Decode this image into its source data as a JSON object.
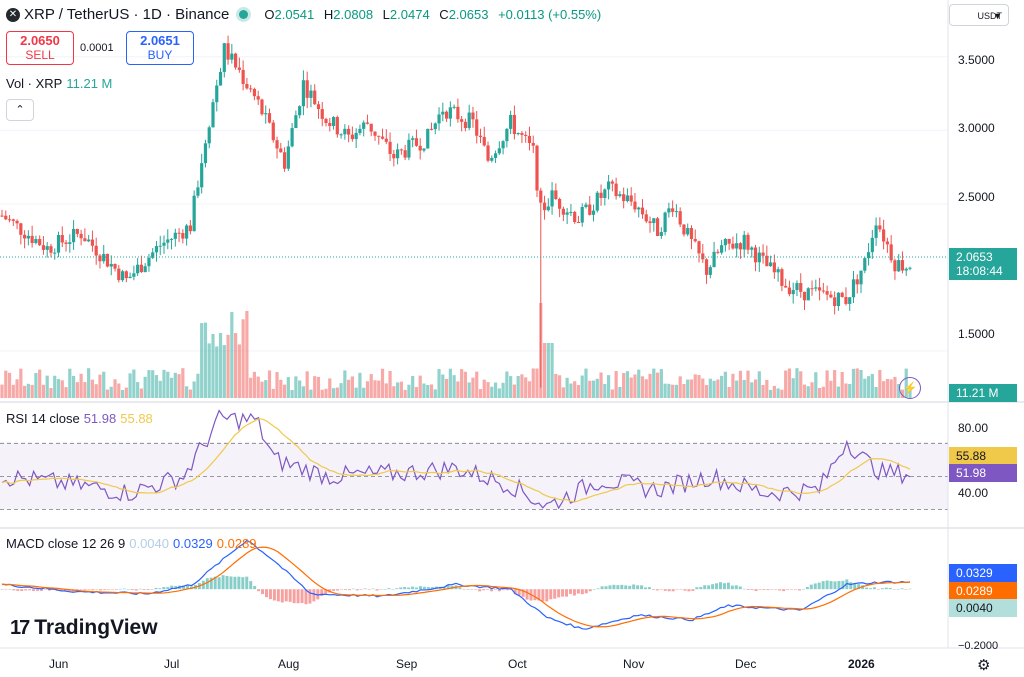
{
  "header": {
    "title": "XRP / TetherUS · 1D · Binance",
    "o_label": "O",
    "o_value": "2.0541",
    "h_label": "H",
    "h_value": "2.0808",
    "l_label": "L",
    "l_value": "2.0474",
    "c_label": "C",
    "c_value": "2.0653",
    "change": "+0.0113 (+0.55%)"
  },
  "trade": {
    "sell_price": "2.0650",
    "sell_label": "SELL",
    "spread": "0.0001",
    "buy_price": "2.0651",
    "buy_label": "BUY"
  },
  "volume": {
    "label": "Vol · XRP",
    "value": "11.21 M",
    "badge": "11.21 M"
  },
  "currency": {
    "label": "USDT"
  },
  "price_axis": [
    "3.5000",
    "3.0000",
    "2.5000",
    "1.5000"
  ],
  "last_price": {
    "value": "2.0653",
    "countdown": "18:08:44"
  },
  "rsi": {
    "label": "RSI 14 close",
    "rsi_value": "51.98",
    "ma_value": "55.88",
    "axis": [
      "80.00",
      "40.00"
    ],
    "badge_ma": "55.88",
    "badge_rsi": "51.98"
  },
  "macd": {
    "label": "MACD close 12 26 9",
    "hist_value": "0.0040",
    "macd_value": "0.0329",
    "signal_value": "0.0289",
    "badge_macd": "0.0329",
    "badge_signal": "0.0289",
    "badge_hist": "0.0040",
    "axis_bottom": "−0.2000"
  },
  "brand": "TradingView",
  "time_axis": [
    "Jun",
    "Jul",
    "Aug",
    "Sep",
    "Oct",
    "Nov",
    "Dec",
    "2026"
  ],
  "colors": {
    "up": "#26a69a",
    "down": "#ef5350",
    "rsi": "#7e57c2",
    "rsi_ma": "#f0c94b",
    "macd": "#2962ff",
    "signal": "#ff6d00"
  },
  "icons": {
    "logo": "xrp-logo-icon",
    "status": "market-open-dot-icon",
    "settings": "gear-icon",
    "alert": "lightning-icon",
    "collapse": "chevron-up-icon"
  },
  "chart_data": {
    "type": "candlestick",
    "title": "XRP / TetherUS · 1D · Binance",
    "ylim": [
      1.2,
      3.75
    ],
    "y_ticks": [
      3.5,
      3.0,
      2.5,
      1.5
    ],
    "x_labels": [
      "Jun",
      "Jul",
      "Aug",
      "Sep",
      "Oct",
      "Nov",
      "Dec",
      "2026"
    ],
    "price_path": [
      [
        "May 20",
        2.42
      ],
      [
        "Jun 1",
        2.2
      ],
      [
        "Jun 10",
        2.3
      ],
      [
        "Jun 22",
        1.98
      ],
      [
        "Jul 1",
        2.22
      ],
      [
        "Jul 9",
        2.35
      ],
      [
        "Jul 13",
        2.95
      ],
      [
        "Jul 18",
        3.55
      ],
      [
        "Jul 22",
        3.4
      ],
      [
        "Jul 27",
        3.18
      ],
      [
        "Aug 3",
        2.78
      ],
      [
        "Aug 8",
        3.32
      ],
      [
        "Aug 14",
        3.08
      ],
      [
        "Aug 20",
        2.95
      ],
      [
        "Aug 25",
        3.05
      ],
      [
        "Sep 1",
        2.82
      ],
      [
        "Sep 10",
        2.95
      ],
      [
        "Sep 14",
        3.15
      ],
      [
        "Sep 22",
        3.05
      ],
      [
        "Sep 26",
        2.8
      ],
      [
        "Oct 2",
        3.05
      ],
      [
        "Oct 8",
        2.85
      ],
      [
        "Oct 10",
        2.45
      ],
      [
        "Oct 13",
        2.55
      ],
      [
        "Oct 20",
        2.4
      ],
      [
        "Oct 28",
        2.6
      ],
      [
        "Nov 4",
        2.5
      ],
      [
        "Nov 10",
        2.32
      ],
      [
        "Nov 14",
        2.5
      ],
      [
        "Nov 18",
        2.28
      ],
      [
        "Nov 23",
        2.05
      ],
      [
        "Nov 27",
        2.2
      ],
      [
        "Dec 3",
        2.25
      ],
      [
        "Dec 8",
        2.1
      ],
      [
        "Dec 14",
        1.95
      ],
      [
        "Dec 19",
        1.9
      ],
      [
        "Dec 30",
        1.85
      ],
      [
        "Jan 4",
        2.1
      ],
      [
        "Jan 7",
        2.4
      ],
      [
        "Jan 12",
        2.1
      ],
      [
        "Jan 16",
        2.07
      ]
    ],
    "rsi_ylim": [
      20,
      95
    ],
    "rsi_path": [
      [
        0,
        50
      ],
      [
        0.08,
        45
      ],
      [
        0.14,
        40
      ],
      [
        0.2,
        50
      ],
      [
        0.24,
        85
      ],
      [
        0.28,
        84
      ],
      [
        0.3,
        60
      ],
      [
        0.36,
        50
      ],
      [
        0.44,
        52
      ],
      [
        0.5,
        55
      ],
      [
        0.56,
        45
      ],
      [
        0.6,
        32
      ],
      [
        0.66,
        48
      ],
      [
        0.72,
        42
      ],
      [
        0.78,
        50
      ],
      [
        0.84,
        40
      ],
      [
        0.9,
        42
      ],
      [
        0.93,
        72
      ],
      [
        0.95,
        60
      ],
      [
        0.97,
        52
      ]
    ],
    "macd_ylim": [
      -0.25,
      0.26
    ],
    "macd_path": [
      [
        0,
        0.02
      ],
      [
        0.08,
        -0.01
      ],
      [
        0.16,
        -0.02
      ],
      [
        0.21,
        0.02
      ],
      [
        0.27,
        0.21
      ],
      [
        0.3,
        0.12
      ],
      [
        0.34,
        -0.02
      ],
      [
        0.42,
        -0.03
      ],
      [
        0.5,
        0.02
      ],
      [
        0.56,
        0.0
      ],
      [
        0.6,
        -0.12
      ],
      [
        0.64,
        -0.17
      ],
      [
        0.7,
        -0.11
      ],
      [
        0.76,
        -0.13
      ],
      [
        0.8,
        -0.07
      ],
      [
        0.88,
        -0.09
      ],
      [
        0.93,
        0.02
      ],
      [
        0.97,
        0.03
      ]
    ]
  }
}
